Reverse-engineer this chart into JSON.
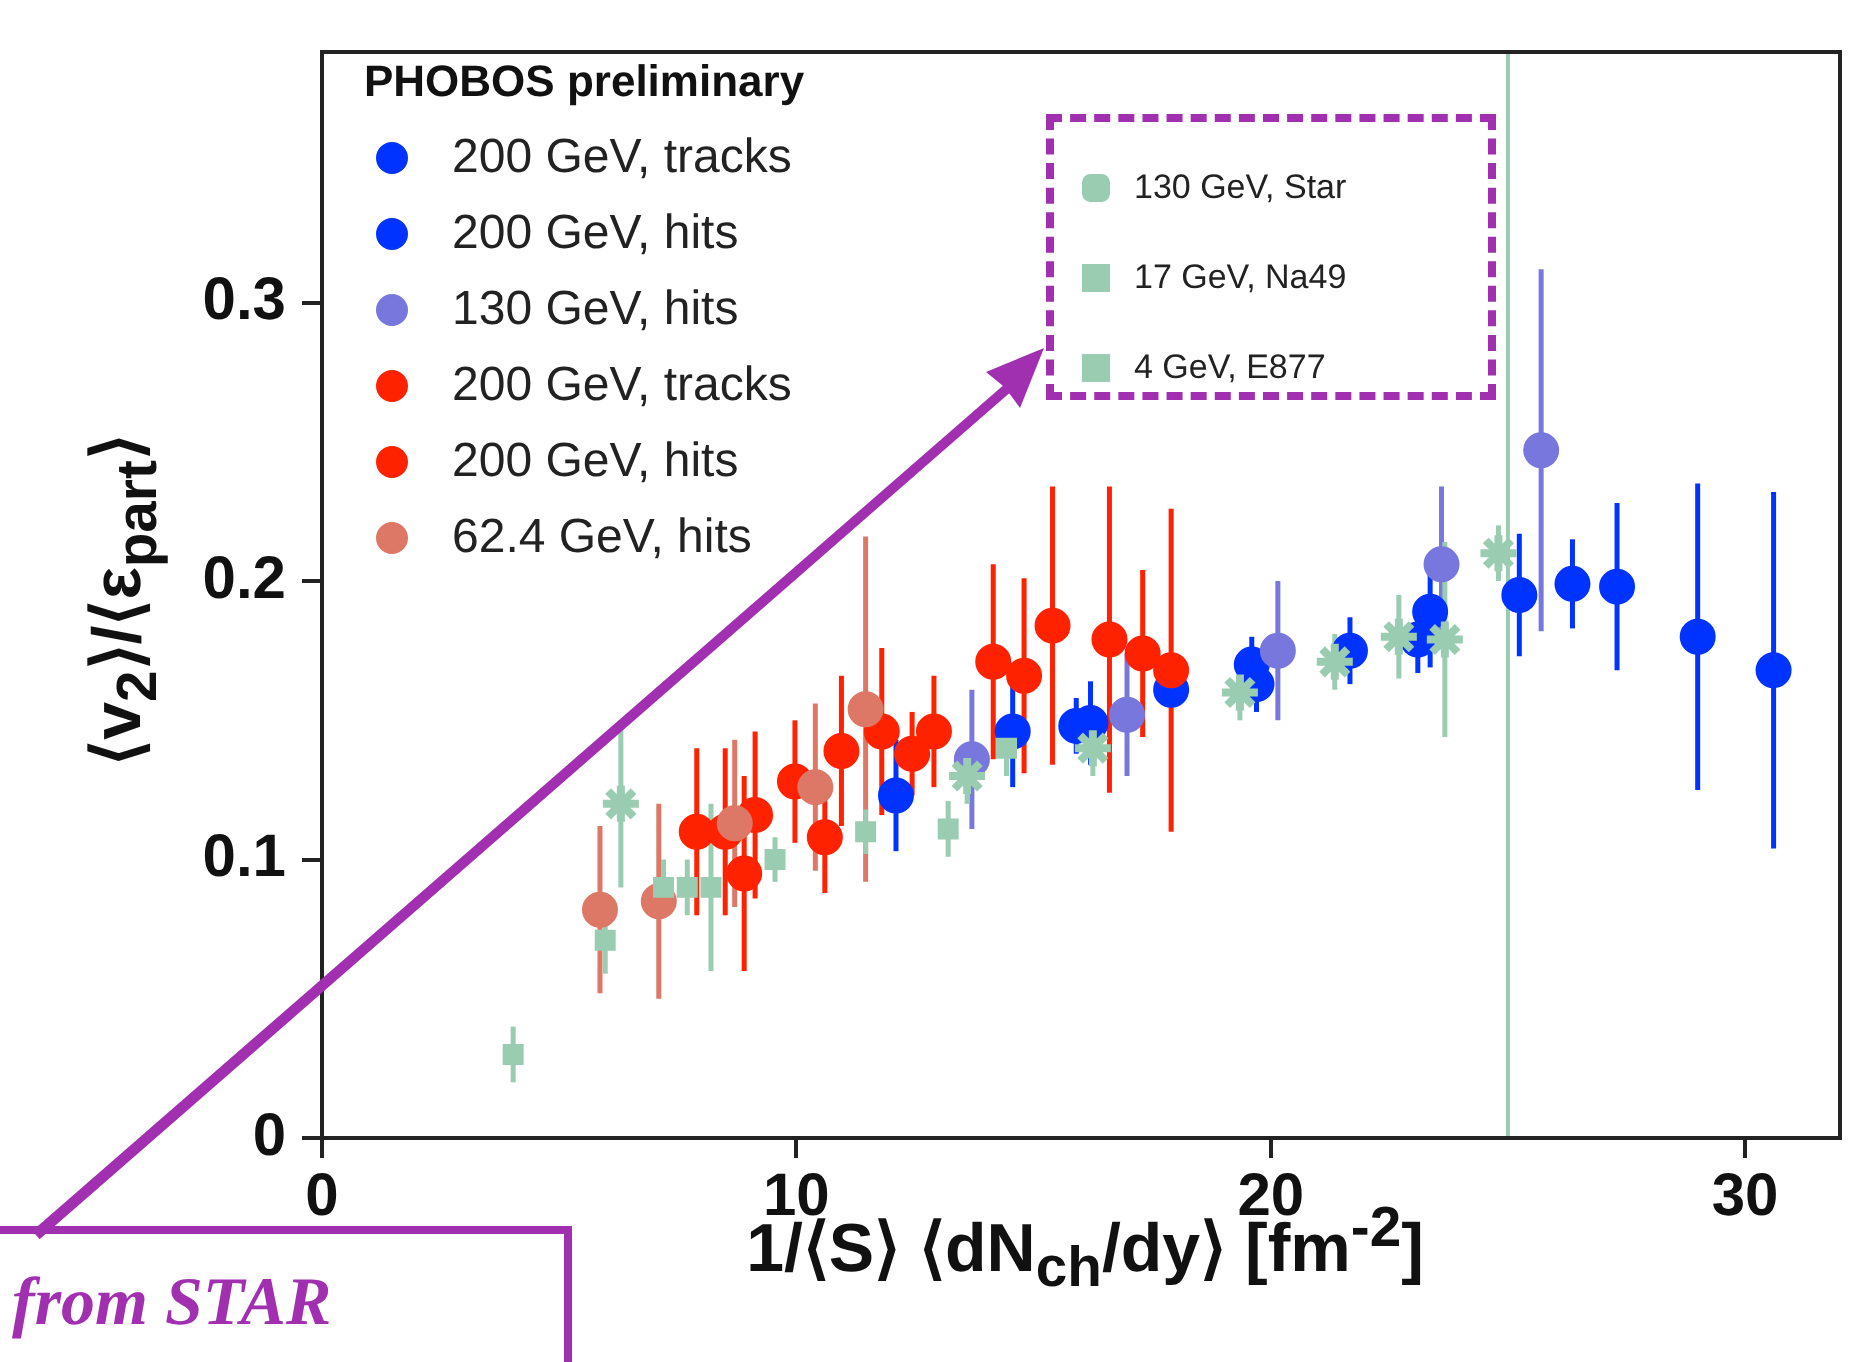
{
  "chart_data": {
    "type": "scatter",
    "xlabel": "1/⟨S⟩ ⟨dN$_{ch}$/dy⟩ [fm$^{-2}$]",
    "ylabel": "⟨v$_{2}$⟩/⟨ε$_{part}$⟩",
    "legend_title": "PHOBOS preliminary",
    "legend": "top left",
    "grid": false,
    "xlim": [
      0,
      32
    ],
    "xticks": [
      0,
      10,
      20,
      30
    ],
    "ylim": [
      0,
      0.39
    ],
    "yticks": [
      0,
      0.1,
      0.2,
      0.3
    ],
    "annotations": [
      "from STAR"
    ],
    "ref_lines": [
      {
        "axis": "x",
        "value": 25,
        "color": "#99ccb0"
      }
    ],
    "series": [
      {
        "name": "200 GeV, tracks",
        "color": "#0033ff",
        "marker": "circle",
        "x": [
          12.1,
          14.56,
          16.2,
          17.9,
          19.6,
          21.67,
          23.36,
          25.24,
          27.3,
          29.0,
          30.6
        ],
        "values": [
          0.123,
          0.146,
          0.149,
          0.161,
          0.17,
          0.175,
          0.189,
          0.195,
          0.198,
          0.18,
          0.168
        ],
        "errors": [
          0.02,
          0.02,
          0.015,
          null,
          0.01,
          0.012,
          0.02,
          0.022,
          0.03,
          0.055,
          0.064
        ]
      },
      {
        "name": "200 GeV, hits",
        "color": "#0033ff",
        "marker": "circle",
        "x": [
          15.9,
          19.7,
          23.1,
          26.36
        ],
        "values": [
          0.148,
          0.163,
          0.179,
          0.199
        ],
        "errors": [
          0.01,
          0.01,
          0.012,
          0.016
        ]
      },
      {
        "name": "130 GeV, hits",
        "color": "#7777dd",
        "marker": "circle",
        "x": [
          13.7,
          16.97,
          20.15,
          23.6,
          25.7
        ],
        "values": [
          0.136,
          0.152,
          0.175,
          0.206,
          0.247
        ],
        "errors": [
          0.025,
          0.022,
          0.025,
          0.028,
          0.065
        ]
      },
      {
        "name": "200 GeV, tracks",
        "color": "#ff2200",
        "marker": "circle",
        "x": [
          7.9,
          8.5,
          9.13,
          9.97,
          10.95,
          11.8,
          12.9,
          14.15,
          15.4,
          16.6,
          17.9
        ],
        "values": [
          0.11,
          0.11,
          0.116,
          0.128,
          0.139,
          0.146,
          0.146,
          0.171,
          0.184,
          0.179,
          0.168
        ],
        "errors": [
          0.03,
          0.03,
          0.03,
          0.022,
          0.027,
          0.03,
          0.02,
          0.035,
          0.05,
          0.055,
          0.058
        ]
      },
      {
        "name": "200 GeV, hits",
        "color": "#ff2200",
        "marker": "circle",
        "x": [
          8.9,
          10.6,
          12.44,
          14.8,
          17.3
        ],
        "values": [
          0.095,
          0.108,
          0.138,
          0.166,
          0.174
        ],
        "errors": [
          0.035,
          0.02,
          0.015,
          0.035,
          0.03
        ]
      },
      {
        "name": "62.4 GeV, hits",
        "color": "#dd7766",
        "marker": "circle",
        "x": [
          5.86,
          7.1,
          8.7,
          10.4,
          11.46
        ],
        "values": [
          0.082,
          0.085,
          0.113,
          0.126,
          0.154
        ],
        "errors": [
          0.03,
          0.035,
          0.03,
          0.03,
          0.062
        ]
      },
      {
        "name": "130 GeV, Star",
        "color": "#99ccb0",
        "marker": "cross",
        "x": [
          6.3,
          13.6,
          16.25,
          19.35,
          21.35,
          22.7,
          23.67,
          24.8
        ],
        "values": [
          0.12,
          0.13,
          0.14,
          0.16,
          0.171,
          0.18,
          0.179,
          0.21
        ],
        "errors": [
          0.03,
          0.01,
          0.01,
          0.01,
          0.01,
          0.015,
          0.035,
          0.01
        ]
      },
      {
        "name": "17 GeV, Na49",
        "color": "#99ccb0",
        "marker": "square",
        "x": [
          5.97,
          7.2,
          7.7,
          8.2,
          9.55,
          11.46,
          13.2,
          14.43
        ],
        "values": [
          0.071,
          0.09,
          0.09,
          0.09,
          0.1,
          0.11,
          0.111,
          0.14
        ],
        "errors": [
          0.012,
          0.01,
          0.01,
          0.03,
          0.008,
          0.008,
          0.01,
          0.01
        ]
      },
      {
        "name": "4 GeV, E877",
        "color": "#99ccb0",
        "marker": "square",
        "x": [
          4.03
        ],
        "values": [
          0.03
        ],
        "errors": [
          0.01
        ]
      }
    ]
  }
}
